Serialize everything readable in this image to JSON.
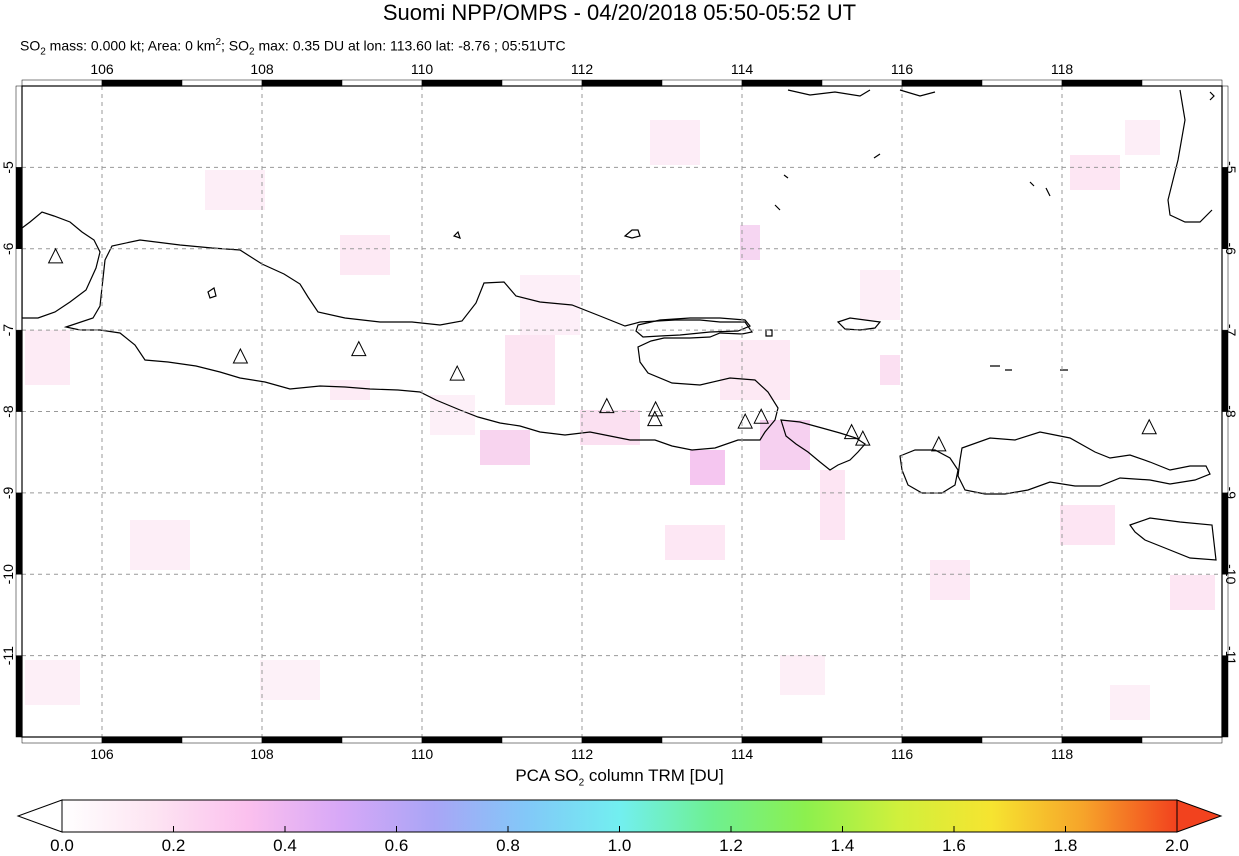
{
  "header": {
    "title": "Suomi NPP/OMPS - 04/20/2018 05:50-05:52 UT",
    "subtitle": {
      "p1": "SO",
      "p1_sub": "2",
      "p2": " mass: 0.000 kt; Area: 0 km",
      "p2_sup": "2",
      "p3": "; SO",
      "p3_sub": "2",
      "p4": " max: 0.35 DU at lon: 113.60 lat: -8.76 ; 05:51UTC"
    }
  },
  "map": {
    "lon_range": [
      105,
      120
    ],
    "lat_range": [
      -12,
      -4
    ],
    "lon_ticks": [
      "106",
      "108",
      "110",
      "112",
      "114",
      "116",
      "118"
    ],
    "lat_ticks": [
      "-5",
      "-6",
      "-7",
      "-8",
      "-9",
      "-10",
      "-11"
    ],
    "volcanoes": [
      [
        105.42,
        -6.1
      ],
      [
        107.73,
        -7.33
      ],
      [
        109.21,
        -7.24
      ],
      [
        110.44,
        -7.54
      ],
      [
        112.31,
        -7.94
      ],
      [
        112.92,
        -7.98
      ],
      [
        112.91,
        -8.1
      ],
      [
        114.04,
        -8.13
      ],
      [
        114.24,
        -8.07
      ],
      [
        115.37,
        -8.26
      ],
      [
        115.51,
        -8.34
      ],
      [
        116.46,
        -8.41
      ],
      [
        119.09,
        -8.2
      ]
    ],
    "max_point": {
      "lon": 113.6,
      "lat": -8.76
    }
  },
  "colorbar": {
    "label_main": "PCA SO",
    "label_sub": "2",
    "label_rest": " column TRM [DU]",
    "ticks": [
      "0.0",
      "0.2",
      "0.4",
      "0.6",
      "0.8",
      "1.0",
      "1.2",
      "1.4",
      "1.6",
      "1.8",
      "2.0"
    ],
    "colors": [
      "#ffffff",
      "#fde4f2",
      "#fbc0ee",
      "#d7a8f7",
      "#a9a5f6",
      "#82c8f8",
      "#72eff0",
      "#6ef091",
      "#8cf04e",
      "#d0f03c",
      "#f6e430",
      "#f6a32a",
      "#f2421e"
    ],
    "under_color": "#ffffff",
    "over_color": "#f2421e"
  }
}
